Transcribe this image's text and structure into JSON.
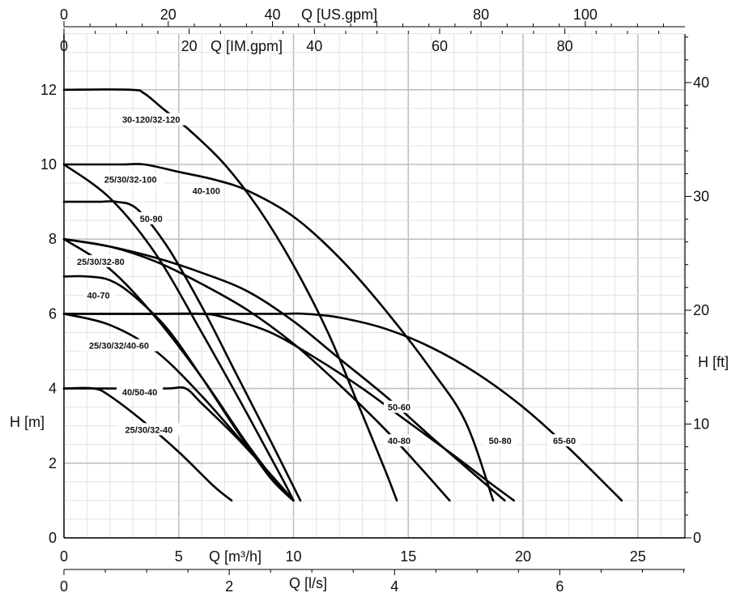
{
  "chart_data": {
    "type": "line",
    "title": "",
    "grid": true,
    "xlabel": "Q [m³/h]",
    "ylabel": "H [m]",
    "xlim": [
      0,
      27
    ],
    "ylim": [
      0,
      13
    ],
    "x_ticks": [
      0,
      5,
      10,
      15,
      20,
      25
    ],
    "y_ticks": [
      0,
      2,
      4,
      6,
      8,
      10,
      12
    ],
    "secondary_axes": {
      "right": {
        "label": "H [ft]",
        "ticks": [
          0,
          10,
          20,
          30,
          40
        ]
      },
      "bottom2": {
        "label": "Q [l/s]",
        "ticks": [
          0,
          2,
          4,
          6
        ]
      },
      "top_inner": {
        "label": "Q [IM.gpm]",
        "ticks": [
          0,
          20,
          40,
          60,
          80
        ]
      },
      "top_outer": {
        "label": "Q [US.gpm]",
        "ticks": [
          0,
          20,
          40,
          80,
          100
        ]
      }
    },
    "series": [
      {
        "name": "30-120/32-120",
        "x": [
          0,
          2.9,
          3.5,
          4.3,
          5.5,
          7.0,
          8.5,
          10.0,
          11.5,
          12.8,
          14.0,
          14.5
        ],
        "y": [
          12,
          12,
          11.9,
          11.5,
          10.9,
          10.0,
          8.8,
          7.3,
          5.5,
          3.6,
          1.8,
          1.0
        ]
      },
      {
        "name": "40-100",
        "x": [
          0,
          2.5,
          3.5,
          5.0,
          6.5,
          8.0,
          10.0,
          12.0,
          14.0,
          16.0,
          17.5,
          18.7
        ],
        "y": [
          10,
          10,
          10,
          9.8,
          9.6,
          9.3,
          8.6,
          7.5,
          6.1,
          4.5,
          3.1,
          1.0
        ]
      },
      {
        "name": "25/30/32-100",
        "x": [
          0,
          2.0,
          4.0,
          6.0,
          8.0,
          9.5,
          10.0
        ],
        "y": [
          10,
          9.1,
          7.6,
          5.5,
          3.3,
          1.6,
          1.0
        ]
      },
      {
        "name": "50-90",
        "x": [
          0,
          1.5,
          2.3,
          3.2,
          4.5,
          6.0,
          7.5,
          9.0,
          10.3
        ],
        "y": [
          9,
          9,
          9,
          8.8,
          7.8,
          6.2,
          4.4,
          2.6,
          1.0
        ]
      },
      {
        "name": "25/30/32-80",
        "x": [
          0,
          2.0,
          4.0,
          6.0,
          8.0,
          9.5,
          10.0
        ],
        "y": [
          8,
          7.2,
          5.9,
          4.3,
          2.5,
          1.3,
          1.0
        ]
      },
      {
        "name": "40-80",
        "x": [
          0,
          2.0,
          4.0,
          6.0,
          8.0,
          10.0,
          12.0,
          14.0,
          15.5,
          16.8
        ],
        "y": [
          8,
          7.8,
          7.4,
          6.8,
          6.1,
          5.2,
          4.1,
          2.9,
          1.9,
          1.0
        ]
      },
      {
        "name": "50-80",
        "x": [
          0,
          2.0,
          4.0,
          6.0,
          8.0,
          10.0,
          12.0,
          14.0,
          16.0,
          17.5,
          19.2
        ],
        "y": [
          8,
          7.8,
          7.5,
          7.1,
          6.6,
          5.8,
          4.8,
          3.8,
          2.7,
          1.9,
          1.0
        ]
      },
      {
        "name": "40-70",
        "x": [
          0,
          1.0,
          2.0,
          3.0,
          4.5,
          6.0,
          7.5,
          9.0,
          10.0
        ],
        "y": [
          7,
          7,
          6.9,
          6.5,
          5.6,
          4.3,
          2.9,
          1.6,
          1.0
        ]
      },
      {
        "name": "50-60",
        "x": [
          0,
          2.0,
          4.0,
          6.0,
          7.0,
          9.0,
          11.0,
          13.0,
          15.0,
          17.0,
          18.5,
          19.6
        ],
        "y": [
          6,
          6,
          6,
          6,
          5.9,
          5.5,
          4.8,
          4.0,
          3.1,
          2.2,
          1.5,
          1.0
        ]
      },
      {
        "name": "65-60",
        "x": [
          0,
          4.0,
          8.0,
          9.5,
          10.5,
          12.0,
          14.0,
          16.0,
          18.0,
          20.0,
          22.0,
          24.3
        ],
        "y": [
          6,
          6,
          6,
          6,
          6,
          5.9,
          5.6,
          5.1,
          4.4,
          3.5,
          2.4,
          1.0
        ]
      },
      {
        "name": "25/30/32/40-60",
        "x": [
          0,
          2.0,
          4.0,
          6.0,
          8.0,
          9.0,
          10.0
        ],
        "y": [
          6,
          5.7,
          5.0,
          3.8,
          2.4,
          1.7,
          1.0
        ]
      },
      {
        "name": "40/50-40",
        "x": [
          0,
          2.5,
          4.5,
          5.3,
          6.0,
          7.5,
          9.0,
          10.0
        ],
        "y": [
          4,
          4,
          4,
          4,
          3.6,
          2.7,
          1.7,
          1.0
        ]
      },
      {
        "name": "25/30/32-40",
        "x": [
          0,
          1.3,
          2.0,
          3.5,
          5.0,
          6.5,
          7.3
        ],
        "y": [
          4,
          4,
          3.8,
          3.1,
          2.3,
          1.4,
          1.0
        ]
      }
    ],
    "curve_labels": [
      {
        "text": "30-120/32-120",
        "x": 3.8,
        "y": 11.2
      },
      {
        "text": "40-100",
        "x": 6.2,
        "y": 9.3
      },
      {
        "text": "25/30/32-100",
        "x": 2.9,
        "y": 9.6
      },
      {
        "text": "50-90",
        "x": 3.8,
        "y": 8.55
      },
      {
        "text": "25/30/32-80",
        "x": 1.6,
        "y": 7.4
      },
      {
        "text": "40-70",
        "x": 1.5,
        "y": 6.5
      },
      {
        "text": "25/30/32/40-60",
        "x": 2.4,
        "y": 5.15
      },
      {
        "text": "40/50-40",
        "x": 3.3,
        "y": 3.9
      },
      {
        "text": "25/30/32-40",
        "x": 3.7,
        "y": 2.9
      },
      {
        "text": "50-60",
        "x": 14.6,
        "y": 3.5
      },
      {
        "text": "40-80",
        "x": 14.6,
        "y": 2.6
      },
      {
        "text": "50-80",
        "x": 19.0,
        "y": 2.6
      },
      {
        "text": "65-60",
        "x": 21.8,
        "y": 2.6
      }
    ]
  }
}
